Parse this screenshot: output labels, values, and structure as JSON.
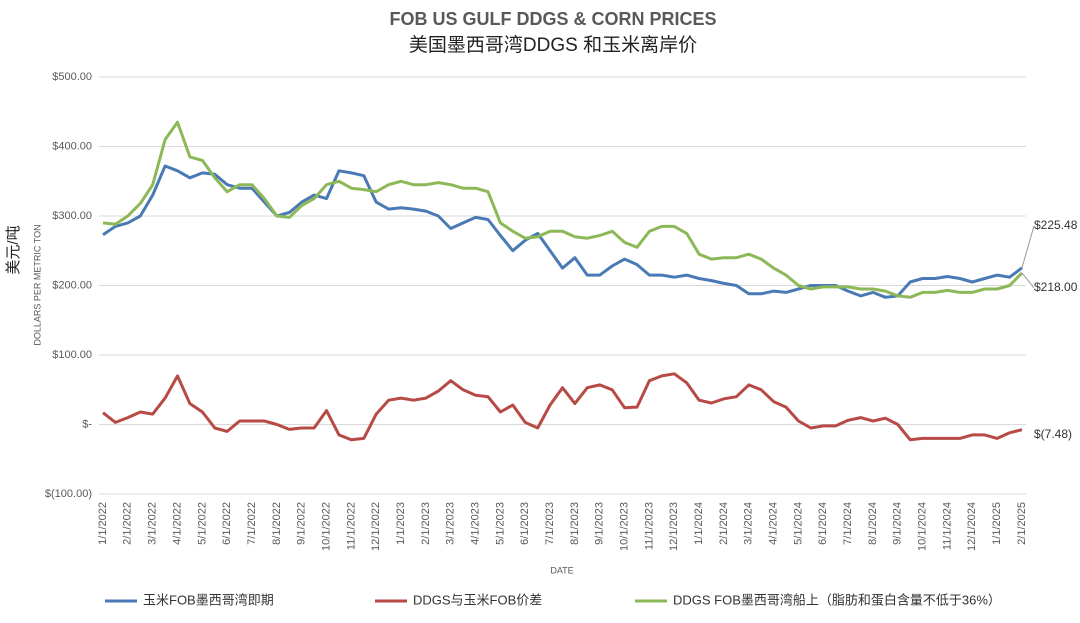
{
  "chart_data": {
    "type": "line",
    "title": "FOB US GULF DDGS & CORN PRICES",
    "subtitle": "美国墨西哥湾DDGS 和玉米离岸价",
    "y_label": "DOLLARS PER METRIC TON",
    "y_label_cn": "美元/吨",
    "x_label": "DATE",
    "ylim": [
      -100,
      500
    ],
    "yticks": [
      {
        "value": 500,
        "label": "$500.00"
      },
      {
        "value": 400,
        "label": "$400.00"
      },
      {
        "value": 300,
        "label": "$300.00"
      },
      {
        "value": 200,
        "label": "$200.00"
      },
      {
        "value": 100,
        "label": "$100.00"
      },
      {
        "value": 0,
        "label": "$-"
      },
      {
        "value": -100,
        "label": "$(100.00)"
      }
    ],
    "grid": true,
    "legend": "bottom",
    "categories": [
      "1/1/2022",
      null,
      "2/1/2022",
      null,
      "3/1/2022",
      null,
      "4/1/2022",
      null,
      "5/1/2022",
      null,
      "6/1/2022",
      null,
      "7/1/2022",
      null,
      "8/1/2022",
      null,
      "9/1/2022",
      null,
      "10/1/2022",
      null,
      "11/1/2022",
      null,
      "12/1/2022",
      null,
      "1/1/2023",
      null,
      "2/1/2023",
      null,
      "3/1/2023",
      null,
      "4/1/2023",
      null,
      "5/1/2023",
      null,
      "6/1/2023",
      null,
      "7/1/2023",
      null,
      "8/1/2023",
      null,
      "9/1/2023",
      null,
      "10/1/2023",
      null,
      "11/1/2023",
      null,
      "12/1/2023",
      null,
      "1/1/2024",
      null,
      "2/1/2024",
      null,
      "3/1/2024",
      null,
      "4/1/2024",
      null,
      "5/1/2024",
      null,
      "6/1/2024",
      null,
      "7/1/2024",
      null,
      "8/1/2024",
      null,
      "9/1/2024",
      null,
      "10/1/2024",
      null,
      "11/1/2024",
      null,
      "12/1/2024",
      null,
      "1/1/2025",
      null,
      "2/1/2025"
    ],
    "series": [
      {
        "name": "玉米FOB墨西哥湾即期",
        "color": "#4a7ab5",
        "values": [
          273,
          285,
          290,
          300,
          330,
          372,
          365,
          355,
          362,
          360,
          345,
          340,
          340,
          320,
          300,
          305,
          320,
          330,
          325,
          365,
          362,
          358,
          320,
          310,
          312,
          310,
          307,
          300,
          282,
          290,
          298,
          295,
          272,
          250,
          265,
          275,
          250,
          225,
          240,
          215,
          215,
          228,
          238,
          230,
          215,
          215,
          212,
          215,
          210,
          207,
          203,
          200,
          188,
          188,
          192,
          190,
          195,
          200,
          200,
          200,
          192,
          185,
          190,
          183,
          185,
          205,
          210,
          210,
          213,
          210,
          205,
          210,
          215,
          212,
          225.48
        ],
        "value_labels": {
          "74": "$225.48"
        }
      },
      {
        "name": "DDGS与玉米FOB价差",
        "color": "#b84a45",
        "values": [
          17,
          3,
          10,
          18,
          15,
          38,
          70,
          30,
          18,
          -5,
          -10,
          5,
          5,
          5,
          0,
          -7,
          -5,
          -5,
          20,
          -15,
          -22,
          -20,
          15,
          35,
          38,
          35,
          38,
          48,
          63,
          50,
          42,
          40,
          18,
          28,
          3,
          -5,
          28,
          53,
          30,
          53,
          57,
          50,
          24,
          25,
          63,
          70,
          73,
          60,
          35,
          31,
          37,
          40,
          57,
          50,
          33,
          25,
          5,
          -5,
          -2,
          -2,
          6,
          10,
          5,
          9,
          0,
          -22,
          -20,
          -20,
          -20,
          -20,
          -15,
          -15,
          -20,
          -12,
          -7.48
        ],
        "value_labels": {
          "74": "$(7.48)"
        }
      },
      {
        "name": "DDGS FOB墨西哥湾船上（脂肪和蛋白含量不低于36%）",
        "color": "#8db858",
        "values": [
          290,
          288,
          300,
          318,
          345,
          410,
          435,
          385,
          380,
          355,
          335,
          345,
          345,
          325,
          300,
          298,
          315,
          325,
          345,
          350,
          340,
          338,
          335,
          345,
          350,
          345,
          345,
          348,
          345,
          340,
          340,
          335,
          290,
          278,
          268,
          270,
          278,
          278,
          270,
          268,
          272,
          278,
          262,
          255,
          278,
          285,
          285,
          275,
          245,
          238,
          240,
          240,
          245,
          238,
          225,
          215,
          200,
          195,
          198,
          198,
          198,
          195,
          195,
          192,
          185,
          183,
          190,
          190,
          193,
          190,
          190,
          195,
          195,
          200,
          218
        ],
        "value_labels": {
          "74": "$218.00"
        }
      }
    ]
  }
}
